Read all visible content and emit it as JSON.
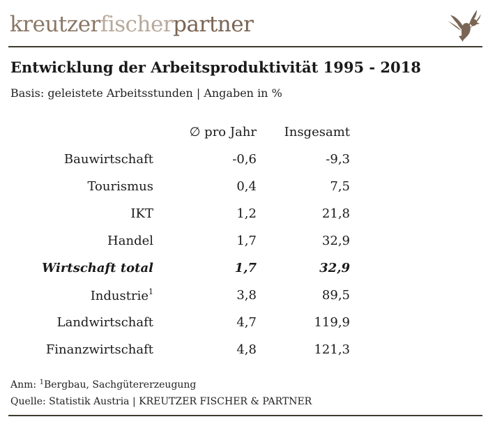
{
  "logo": {
    "part1": "kreutzer",
    "part2": "fischer",
    "part3": "partner"
  },
  "title": "Entwicklung der Arbeitsproduktivität 1995 - 2018",
  "subtitle": "Basis: geleistete Arbeitsstunden | Angaben in %",
  "table": {
    "headers": {
      "label": "",
      "per_year": "∅ pro Jahr",
      "total": "Insgesamt"
    },
    "rows": [
      {
        "label": "Bauwirtschaft",
        "sup": "",
        "per_year": "-0,6",
        "total": "-9,3"
      },
      {
        "label": "Tourismus",
        "sup": "",
        "per_year": "0,4",
        "total": "7,5"
      },
      {
        "label": "IKT",
        "sup": "",
        "per_year": "1,2",
        "total": "21,8"
      },
      {
        "label": "Handel",
        "sup": "",
        "per_year": "1,7",
        "total": "32,9"
      },
      {
        "label": "Wirtschaft total",
        "sup": "",
        "per_year": "1,7",
        "total": "32,9",
        "emphasis": true
      },
      {
        "label": "Industrie",
        "sup": "1",
        "per_year": "3,8",
        "total": "89,5"
      },
      {
        "label": "Landwirtschaft",
        "sup": "",
        "per_year": "4,7",
        "total": "119,9"
      },
      {
        "label": "Finanzwirtschaft",
        "sup": "",
        "per_year": "4,8",
        "total": "121,3"
      }
    ]
  },
  "notes": {
    "anm_prefix": "Anm: ",
    "anm_sup": "1",
    "anm_text": "Bergbau, Sachgütererzeugung",
    "source": "Quelle: Statistik Austria | KREUTZER FISCHER & PARTNER"
  },
  "colors": {
    "rule": "#3e3a2e",
    "logo_dark": "#7a6554",
    "logo_light": "#b8a99b"
  },
  "icons": {
    "logo_mark": "eagle-icon"
  }
}
